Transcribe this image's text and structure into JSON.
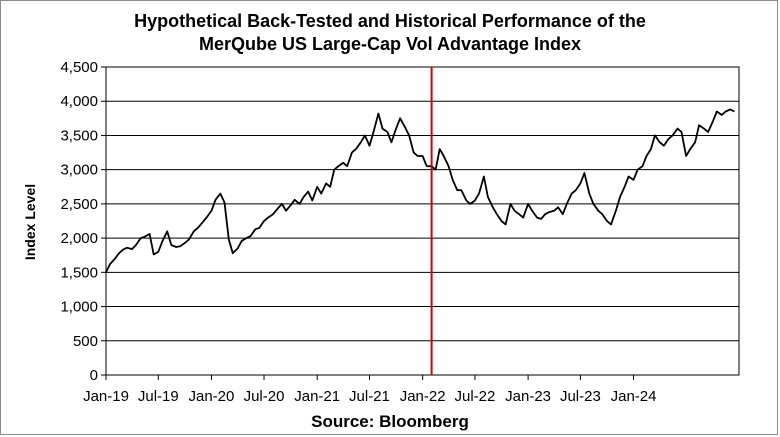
{
  "chart_data": {
    "type": "line",
    "title_line1": "Hypothetical Back-Tested and Historical Performance of the",
    "title_line2": "MerQube US Large-Cap Vol Advantage Index",
    "xlabel": "Source: Bloomberg",
    "ylabel": "Index Level",
    "ylim": [
      0,
      4500
    ],
    "yticks": [
      0,
      500,
      1000,
      1500,
      2000,
      2500,
      3000,
      3500,
      4000,
      4500
    ],
    "ytick_labels": [
      "0",
      "500",
      "1,000",
      "1,500",
      "2,000",
      "2,500",
      "3,000",
      "3,500",
      "4,000",
      "4,500"
    ],
    "xlim": [
      "2019-01",
      "2024-12"
    ],
    "xticks": [
      "Jan-19",
      "Jul-19",
      "Jan-20",
      "Jul-20",
      "Jan-21",
      "Jul-21",
      "Jan-22",
      "Jul-22",
      "Jan-23",
      "Jul-23",
      "Jan-24"
    ],
    "grid": "horizontal",
    "marker_line": {
      "x": "2022-02",
      "color": "#d40000"
    },
    "series": [
      {
        "color": "#000000",
        "x": [
          "2019-01-01",
          "2019-01-15",
          "2019-02-01",
          "2019-02-15",
          "2019-03-01",
          "2019-03-15",
          "2019-04-01",
          "2019-04-15",
          "2019-05-01",
          "2019-05-15",
          "2019-06-01",
          "2019-06-15",
          "2019-07-01",
          "2019-07-15",
          "2019-08-01",
          "2019-08-15",
          "2019-09-01",
          "2019-09-15",
          "2019-10-01",
          "2019-10-15",
          "2019-11-01",
          "2019-11-15",
          "2019-12-01",
          "2019-12-15",
          "2020-01-01",
          "2020-01-15",
          "2020-02-01",
          "2020-02-15",
          "2020-03-01",
          "2020-03-15",
          "2020-04-01",
          "2020-04-15",
          "2020-05-01",
          "2020-05-15",
          "2020-06-01",
          "2020-06-15",
          "2020-07-01",
          "2020-07-15",
          "2020-08-01",
          "2020-08-15",
          "2020-09-01",
          "2020-09-15",
          "2020-10-01",
          "2020-10-15",
          "2020-11-01",
          "2020-11-15",
          "2020-12-01",
          "2020-12-15",
          "2021-01-01",
          "2021-01-15",
          "2021-02-01",
          "2021-02-15",
          "2021-03-01",
          "2021-03-15",
          "2021-04-01",
          "2021-04-15",
          "2021-05-01",
          "2021-05-15",
          "2021-06-01",
          "2021-06-15",
          "2021-07-01",
          "2021-07-15",
          "2021-08-01",
          "2021-08-15",
          "2021-09-01",
          "2021-09-15",
          "2021-10-01",
          "2021-10-15",
          "2021-11-01",
          "2021-11-15",
          "2021-12-01",
          "2021-12-15",
          "2022-01-01",
          "2022-01-15",
          "2022-02-01",
          "2022-02-15",
          "2022-03-01",
          "2022-03-15",
          "2022-04-01",
          "2022-04-15",
          "2022-05-01",
          "2022-05-15",
          "2022-06-01",
          "2022-06-15",
          "2022-07-01",
          "2022-07-15",
          "2022-08-01",
          "2022-08-15",
          "2022-09-01",
          "2022-09-15",
          "2022-10-01",
          "2022-10-15",
          "2022-11-01",
          "2022-11-15",
          "2022-12-01",
          "2022-12-15",
          "2023-01-01",
          "2023-01-15",
          "2023-02-01",
          "2023-02-15",
          "2023-03-01",
          "2023-03-15",
          "2023-04-01",
          "2023-04-15",
          "2023-05-01",
          "2023-05-15",
          "2023-06-01",
          "2023-06-15",
          "2023-07-01",
          "2023-07-15",
          "2023-08-01",
          "2023-08-15",
          "2023-09-01",
          "2023-09-15",
          "2023-10-01",
          "2023-10-15",
          "2023-11-01",
          "2023-11-15",
          "2023-12-01",
          "2023-12-15",
          "2024-01-01",
          "2024-01-15",
          "2024-02-01",
          "2024-02-15",
          "2024-03-01",
          "2024-03-15",
          "2024-04-01",
          "2024-04-15",
          "2024-05-01",
          "2024-05-15",
          "2024-06-01",
          "2024-06-15",
          "2024-07-01",
          "2024-07-15",
          "2024-08-01",
          "2024-08-15",
          "2024-09-01",
          "2024-09-15",
          "2024-10-01",
          "2024-10-15",
          "2024-11-01",
          "2024-11-15",
          "2024-12-01",
          "2024-12-15"
        ],
        "values": [
          1500,
          1620,
          1700,
          1780,
          1830,
          1860,
          1840,
          1900,
          2000,
          2020,
          2060,
          1760,
          1800,
          1950,
          2100,
          1900,
          1870,
          1880,
          1930,
          1980,
          2100,
          2150,
          2230,
          2300,
          2400,
          2560,
          2650,
          2520,
          1980,
          1780,
          1850,
          1960,
          2000,
          2030,
          2130,
          2150,
          2250,
          2300,
          2350,
          2420,
          2500,
          2400,
          2480,
          2560,
          2500,
          2600,
          2680,
          2550,
          2750,
          2650,
          2800,
          2750,
          3000,
          3050,
          3100,
          3050,
          3250,
          3300,
          3400,
          3500,
          3350,
          3550,
          3820,
          3600,
          3550,
          3400,
          3600,
          3750,
          3620,
          3500,
          3250,
          3200,
          3200,
          3050,
          3050,
          3000,
          3300,
          3200,
          3050,
          2850,
          2700,
          2700,
          2550,
          2500,
          2550,
          2650,
          2900,
          2600,
          2450,
          2350,
          2250,
          2200,
          2500,
          2400,
          2350,
          2300,
          2500,
          2400,
          2300,
          2280,
          2350,
          2380,
          2400,
          2450,
          2350,
          2500,
          2650,
          2700,
          2800,
          2950,
          2650,
          2500,
          2400,
          2350,
          2250,
          2200,
          2400,
          2600,
          2750,
          2900,
          2850,
          3000,
          3050,
          3200,
          3300,
          3500,
          3400,
          3350,
          3450,
          3500,
          3600,
          3550,
          3200,
          3300,
          3400,
          3650,
          3600,
          3550,
          3700,
          3850,
          3800,
          3850,
          3880,
          3850
        ]
      }
    ]
  }
}
